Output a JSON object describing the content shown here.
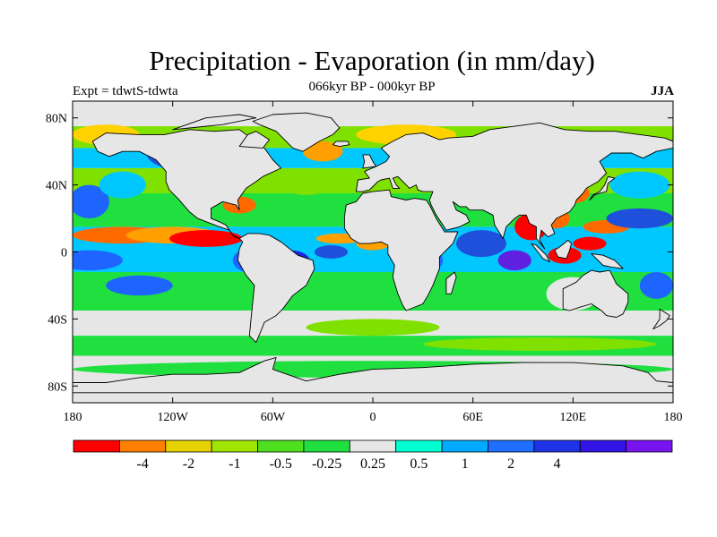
{
  "title": "Precipitation - Evaporation (in mm/day)",
  "subtitle": "066kyr BP - 000kyr BP",
  "left_note": "Expt = tdwtS-tdwta",
  "right_note": "JJA",
  "map": {
    "projection": "cylindrical-equidistant",
    "lon_range": [
      -180,
      180
    ],
    "lat_range": [
      -90,
      90
    ],
    "missing_color": "#e6e6e6",
    "land_color": "#e6e6e6",
    "coastline_color": "#000000",
    "x_ticks": [
      {
        "value": -180,
        "label": "180"
      },
      {
        "value": -120,
        "label": "120W"
      },
      {
        "value": -60,
        "label": "60W"
      },
      {
        "value": 0,
        "label": "0"
      },
      {
        "value": 60,
        "label": "60E"
      },
      {
        "value": 120,
        "label": "120E"
      },
      {
        "value": 180,
        "label": "180"
      }
    ],
    "y_ticks": [
      {
        "value": 80,
        "label": "80N"
      },
      {
        "value": 40,
        "label": "40N"
      },
      {
        "value": 0,
        "label": "0"
      },
      {
        "value": -40,
        "label": "40S"
      },
      {
        "value": -80,
        "label": "80S"
      }
    ],
    "regions": [
      {
        "lon": -170,
        "lat": -5,
        "rx": 20,
        "ry": 6,
        "color": "#1e64ff"
      },
      {
        "lon": -150,
        "lat": 10,
        "rx": 30,
        "ry": 5,
        "color": "#ff6a00"
      },
      {
        "lon": -120,
        "lat": 10,
        "rx": 28,
        "ry": 5,
        "color": "#ffa000"
      },
      {
        "lon": -100,
        "lat": 8,
        "rx": 22,
        "ry": 5,
        "color": "#ff0000"
      },
      {
        "lon": -140,
        "lat": -20,
        "rx": 20,
        "ry": 6,
        "color": "#1e64ff"
      },
      {
        "lon": -170,
        "lat": 30,
        "rx": 12,
        "ry": 10,
        "color": "#1e64ff"
      },
      {
        "lon": -150,
        "lat": 40,
        "rx": 14,
        "ry": 8,
        "color": "#00c8ff"
      },
      {
        "lon": -160,
        "lat": 70,
        "rx": 20,
        "ry": 6,
        "color": "#ffd200"
      },
      {
        "lon": -120,
        "lat": 60,
        "rx": 16,
        "ry": 10,
        "color": "#1e50dc"
      },
      {
        "lon": -100,
        "lat": 55,
        "rx": 12,
        "ry": 8,
        "color": "#2020e0"
      },
      {
        "lon": -95,
        "lat": 40,
        "rx": 10,
        "ry": 6,
        "color": "#ffa000"
      },
      {
        "lon": -80,
        "lat": 28,
        "rx": 10,
        "ry": 5,
        "color": "#ff6a00"
      },
      {
        "lon": -70,
        "lat": -5,
        "rx": 14,
        "ry": 8,
        "color": "#1e64ff"
      },
      {
        "lon": -50,
        "lat": -5,
        "rx": 12,
        "ry": 6,
        "color": "#2020e0"
      },
      {
        "lon": -25,
        "lat": 0,
        "rx": 10,
        "ry": 4,
        "color": "#1e50dc"
      },
      {
        "lon": -20,
        "lat": 8,
        "rx": 14,
        "ry": 3,
        "color": "#ffa000"
      },
      {
        "lon": -40,
        "lat": 40,
        "rx": 14,
        "ry": 6,
        "color": "#80e000"
      },
      {
        "lon": -30,
        "lat": 60,
        "rx": 12,
        "ry": 6,
        "color": "#ffa000"
      },
      {
        "lon": 20,
        "lat": 70,
        "rx": 30,
        "ry": 6,
        "color": "#ffd200"
      },
      {
        "lon": 60,
        "lat": 60,
        "rx": 12,
        "ry": 6,
        "color": "#1e50dc"
      },
      {
        "lon": 0,
        "lat": 5,
        "rx": 10,
        "ry": 4,
        "color": "#ffa000"
      },
      {
        "lon": 30,
        "lat": -5,
        "rx": 12,
        "ry": 8,
        "color": "#1e64ff"
      },
      {
        "lon": 65,
        "lat": 5,
        "rx": 15,
        "ry": 8,
        "color": "#1e50dc"
      },
      {
        "lon": 85,
        "lat": -5,
        "rx": 10,
        "ry": 6,
        "color": "#6020e0"
      },
      {
        "lon": 95,
        "lat": 15,
        "rx": 10,
        "ry": 8,
        "color": "#ff0000"
      },
      {
        "lon": 110,
        "lat": 20,
        "rx": 8,
        "ry": 6,
        "color": "#ff6a00"
      },
      {
        "lon": 115,
        "lat": -2,
        "rx": 10,
        "ry": 5,
        "color": "#ff0000"
      },
      {
        "lon": 130,
        "lat": 5,
        "rx": 10,
        "ry": 4,
        "color": "#ff0000"
      },
      {
        "lon": 140,
        "lat": 15,
        "rx": 14,
        "ry": 4,
        "color": "#ff6a00"
      },
      {
        "lon": 120,
        "lat": 35,
        "rx": 10,
        "ry": 6,
        "color": "#ff6a00"
      },
      {
        "lon": 160,
        "lat": 20,
        "rx": 20,
        "ry": 6,
        "color": "#1e50dc"
      },
      {
        "lon": 160,
        "lat": 40,
        "rx": 18,
        "ry": 8,
        "color": "#00c8ff"
      },
      {
        "lon": 120,
        "lat": -25,
        "rx": 16,
        "ry": 10,
        "color": "#e6e6e6"
      },
      {
        "lon": 170,
        "lat": -20,
        "rx": 10,
        "ry": 8,
        "color": "#1e64ff"
      },
      {
        "lon": 0,
        "lat": -45,
        "rx": 40,
        "ry": 5,
        "color": "#80e000"
      },
      {
        "lon": -90,
        "lat": -55,
        "rx": 60,
        "ry": 4,
        "color": "#20e040"
      },
      {
        "lon": 100,
        "lat": -55,
        "rx": 70,
        "ry": 4,
        "color": "#80e000"
      },
      {
        "lon": 0,
        "lat": -70,
        "rx": 180,
        "ry": 5,
        "color": "#20e040"
      }
    ],
    "bands": [
      {
        "lat_top": 90,
        "lat_bot": 75,
        "color": "#e6e6e6"
      },
      {
        "lat_top": 75,
        "lat_bot": 62,
        "color": "#80e000"
      },
      {
        "lat_top": 62,
        "lat_bot": 50,
        "color": "#00c8ff"
      },
      {
        "lat_top": 50,
        "lat_bot": 35,
        "color": "#80e000"
      },
      {
        "lat_top": 35,
        "lat_bot": 15,
        "color": "#20e040"
      },
      {
        "lat_top": 15,
        "lat_bot": -12,
        "color": "#00c8ff"
      },
      {
        "lat_top": -12,
        "lat_bot": -35,
        "color": "#20e040"
      },
      {
        "lat_top": -35,
        "lat_bot": -50,
        "color": "#e6e6e6"
      },
      {
        "lat_top": -50,
        "lat_bot": -62,
        "color": "#20e040"
      },
      {
        "lat_top": -62,
        "lat_bot": -90,
        "color": "#e6e6e6"
      }
    ]
  },
  "colorbar": {
    "colors": [
      "#ff0000",
      "#ff8000",
      "#e6d200",
      "#a0e600",
      "#4ee01e",
      "#20e040",
      "#e6e6e6",
      "#00ffd2",
      "#00aaff",
      "#1e6eff",
      "#1e32e6",
      "#3214e6",
      "#7814f0"
    ],
    "labels": [
      "-4",
      "-2",
      "-1",
      "-0.5",
      "-0.25",
      "0.25",
      "0.5",
      "1",
      "2",
      "4"
    ]
  }
}
